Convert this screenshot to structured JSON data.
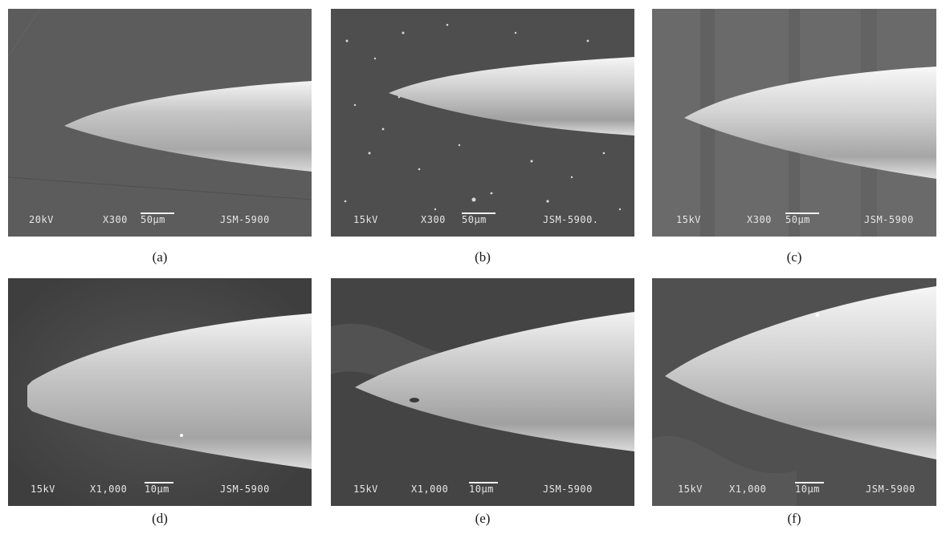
{
  "panels": [
    {
      "id": "a",
      "caption": "(a)",
      "voltage": "20kV",
      "magnification": "X300",
      "scale": "50μm",
      "instrument": "JSM-5900"
    },
    {
      "id": "b",
      "caption": "(b)",
      "voltage": "15kV",
      "magnification": "X300",
      "scale": "50μm",
      "instrument": "JSM-5900."
    },
    {
      "id": "c",
      "caption": "(c)",
      "voltage": "15kV",
      "magnification": "X300",
      "scale": "50μm",
      "instrument": "JSM-5900"
    },
    {
      "id": "d",
      "caption": "(d)",
      "voltage": "15kV",
      "magnification": "X1,000",
      "scale": "10μm",
      "instrument": "JSM-5900"
    },
    {
      "id": "e",
      "caption": "(e)",
      "voltage": "15kV",
      "magnification": "X1,000",
      "scale": "10μm",
      "instrument": "JSM-5900"
    },
    {
      "id": "f",
      "caption": "(f)",
      "voltage": "15kV",
      "magnification": "X1,000",
      "scale": "10μm",
      "instrument": "JSM-5900"
    }
  ],
  "colors": {
    "background_a": "#5c5c5c",
    "background_b": "#4e4e4e",
    "background_c": "#6a6a6a",
    "background_d": "#4a4a4a",
    "background_e": "#444444",
    "background_f": "#505050",
    "needle_light": "#f2f2f2",
    "needle_mid": "#b4b4b4",
    "needle_dark": "#7c7c7c",
    "caption_text": "#1a1a1a"
  }
}
